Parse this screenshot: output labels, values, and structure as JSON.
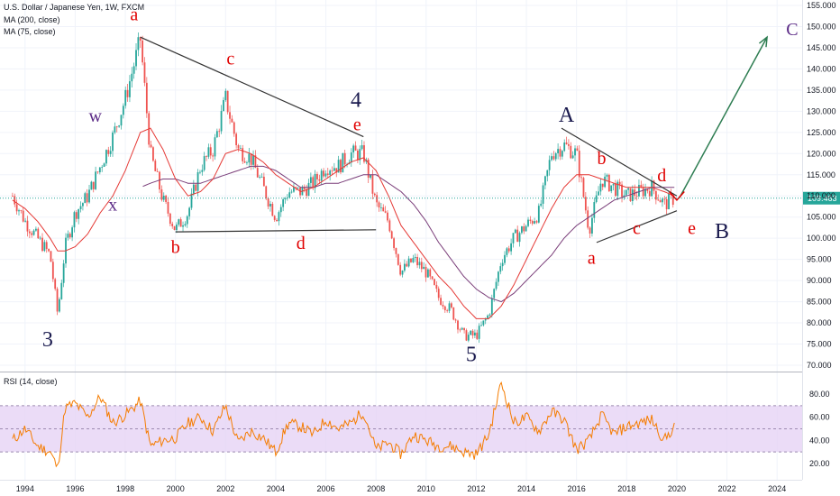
{
  "header": {
    "title": "U.S. Dollar / Japanese Yen, 1W, FXCM",
    "ma200_label": "MA (200, close)",
    "ma75_label": "MA (75, close)",
    "rsi_label": "RSI (14, close)"
  },
  "price_axis": {
    "last_price": "109.463",
    "ticks": [
      "155.000",
      "150.000",
      "145.000",
      "140.000",
      "135.000",
      "130.000",
      "125.000",
      "120.000",
      "115.000",
      "110.000",
      "105.000",
      "100.000",
      "95.000",
      "90.000",
      "85.000",
      "80.000",
      "75.000",
      "70.000"
    ]
  },
  "rsi_axis": {
    "ticks": [
      "80.00",
      "60.00",
      "40.00",
      "20.00"
    ]
  },
  "time_axis": {
    "ticks": [
      "1994",
      "1996",
      "1998",
      "2000",
      "2002",
      "2004",
      "2006",
      "2008",
      "2010",
      "2012",
      "2014",
      "2016",
      "2018",
      "2020",
      "2022",
      "2024"
    ]
  },
  "colors": {
    "up": "#26a69a",
    "down": "#ef5350",
    "ma75": "#e53935",
    "ma200": "#7b3f7a",
    "rsi": "#f57c00",
    "rsi_band": "#e6d3f5",
    "trendline": "#333333",
    "arrow": "#2e7d52",
    "last_price": "#26a69a",
    "wave_red": "#e00000",
    "wave_navy": "#1a1a4e"
  },
  "chart_data": [
    {
      "type": "candlestick",
      "title": "U.S. Dollar / Japanese Yen, 1W, FXCM",
      "ylim": [
        69,
        157
      ],
      "xlim": [
        1993.0,
        2025.0
      ],
      "x": [
        1993.5,
        1994.0,
        1994.5,
        1995.0,
        1995.3,
        1995.6,
        1996.0,
        1996.5,
        1997.0,
        1997.5,
        1998.0,
        1998.6,
        1999.0,
        1999.5,
        2000.0,
        2000.5,
        2001.0,
        2001.5,
        2002.0,
        2002.5,
        2003.0,
        2003.5,
        2004.0,
        2004.5,
        2005.0,
        2005.5,
        2006.0,
        2006.5,
        2007.0,
        2007.5,
        2008.0,
        2008.5,
        2009.0,
        2009.5,
        2010.0,
        2010.5,
        2011.0,
        2011.5,
        2012.0,
        2012.5,
        2013.0,
        2013.5,
        2014.0,
        2014.5,
        2015.0,
        2015.5,
        2016.0,
        2016.5,
        2017.0,
        2017.5,
        2018.0,
        2018.5,
        2019.0,
        2019.5,
        2019.9
      ],
      "close": [
        110,
        104,
        100,
        96,
        82,
        98,
        106,
        110,
        117,
        124,
        133,
        147,
        120,
        109,
        102,
        106,
        117,
        121,
        133,
        121,
        119,
        112,
        105,
        111,
        111,
        113,
        117,
        117,
        120,
        120,
        108,
        104,
        92,
        95,
        92,
        86,
        83,
        77,
        77,
        82,
        95,
        100,
        103,
        106,
        120,
        122,
        120,
        102,
        114,
        112,
        110,
        111,
        112,
        108,
        109.463
      ],
      "ma75_close": [
        109,
        107,
        104,
        100,
        97,
        97,
        98,
        101,
        106,
        110,
        116,
        125,
        126,
        121,
        114,
        110,
        111,
        114,
        120,
        121,
        120,
        118,
        115,
        113,
        111,
        112,
        114,
        116,
        118,
        119,
        116,
        110,
        103,
        99,
        95,
        91,
        88,
        84,
        81,
        81,
        84,
        89,
        95,
        101,
        107,
        112,
        115,
        115,
        114,
        113,
        112,
        112,
        112,
        111,
        110
      ],
      "ma200_close": [
        null,
        null,
        null,
        null,
        null,
        null,
        null,
        null,
        null,
        null,
        null,
        112,
        113,
        114,
        114,
        113,
        113,
        114,
        115,
        116,
        117,
        117,
        116,
        114,
        112,
        112,
        113,
        113,
        114,
        115,
        115,
        113,
        111,
        108,
        104,
        99,
        95,
        91,
        88,
        86,
        85,
        87,
        90,
        93,
        96,
        100,
        103,
        105,
        107,
        109,
        110,
        111,
        112,
        112,
        112
      ]
    },
    {
      "type": "line",
      "title": "RSI (14, close)",
      "ylim": [
        10,
        90
      ],
      "band": [
        30,
        70
      ],
      "x": [
        1993.5,
        1994.0,
        1994.5,
        1995.0,
        1995.3,
        1995.6,
        1996.0,
        1996.5,
        1997.0,
        1997.5,
        1998.0,
        1998.6,
        1999.0,
        1999.5,
        2000.0,
        2000.5,
        2001.0,
        2001.5,
        2002.0,
        2002.5,
        2003.0,
        2003.5,
        2004.0,
        2004.5,
        2005.0,
        2005.5,
        2006.0,
        2006.5,
        2007.0,
        2007.5,
        2008.0,
        2008.5,
        2009.0,
        2009.5,
        2010.0,
        2010.5,
        2011.0,
        2011.5,
        2012.0,
        2012.5,
        2013.0,
        2013.5,
        2014.0,
        2014.5,
        2015.0,
        2015.5,
        2016.0,
        2016.5,
        2017.0,
        2017.5,
        2018.0,
        2018.5,
        2019.0,
        2019.5,
        2019.9
      ],
      "values": [
        40,
        50,
        35,
        30,
        16,
        68,
        72,
        60,
        78,
        55,
        62,
        74,
        35,
        40,
        42,
        55,
        60,
        48,
        70,
        38,
        48,
        42,
        30,
        55,
        52,
        45,
        58,
        50,
        55,
        65,
        32,
        38,
        28,
        45,
        40,
        35,
        35,
        30,
        28,
        45,
        90,
        55,
        60,
        48,
        65,
        58,
        32,
        40,
        62,
        45,
        52,
        55,
        58,
        40,
        52
      ]
    }
  ],
  "wave_labels": [
    {
      "text": "a",
      "x": 1998.35,
      "price": 151.5,
      "style": "red"
    },
    {
      "text": "b",
      "x": 2000.0,
      "price": 96.5,
      "style": "red"
    },
    {
      "text": "c",
      "x": 2002.2,
      "price": 141.0,
      "style": "red"
    },
    {
      "text": "d",
      "x": 2005.0,
      "price": 97.5,
      "style": "red"
    },
    {
      "text": "e",
      "x": 2007.25,
      "price": 125.5,
      "style": "red"
    },
    {
      "text": "4",
      "x": 2007.2,
      "price": 131.0,
      "style": "navy"
    },
    {
      "text": "3",
      "x": 1994.9,
      "price": 74.5,
      "style": "navy"
    },
    {
      "text": "5",
      "x": 2011.8,
      "price": 71.0,
      "style": "navy"
    },
    {
      "text": "w",
      "x": 1996.8,
      "price": 127.5,
      "style": "purple"
    },
    {
      "text": "x",
      "x": 1997.5,
      "price": 106.5,
      "style": "purple"
    },
    {
      "text": "A",
      "x": 2015.6,
      "price": 127.5,
      "style": "navy"
    },
    {
      "text": "b",
      "x": 2017.0,
      "price": 117.5,
      "style": "red"
    },
    {
      "text": "a",
      "x": 2016.6,
      "price": 94.0,
      "style": "red"
    },
    {
      "text": "c",
      "x": 2018.4,
      "price": 101.0,
      "style": "red"
    },
    {
      "text": "d",
      "x": 2019.4,
      "price": 113.5,
      "style": "red"
    },
    {
      "text": "e",
      "x": 2020.6,
      "price": 101.0,
      "style": "red"
    },
    {
      "text": "B",
      "x": 2021.8,
      "price": 100.0,
      "style": "navy"
    },
    {
      "text": "C",
      "x": 2024.6,
      "price": 148.0,
      "style": "purple"
    }
  ],
  "trendlines": [
    {
      "x1": 1998.6,
      "p1": 147.5,
      "x2": 2007.5,
      "p2": 124.0
    },
    {
      "x1": 2000.0,
      "p1": 101.5,
      "x2": 2008.0,
      "p2": 102.0
    },
    {
      "x1": 2015.4,
      "p1": 126.0,
      "x2": 2020.0,
      "p2": 110.0
    },
    {
      "x1": 2016.8,
      "p1": 99.0,
      "x2": 2020.0,
      "p2": 106.5
    }
  ],
  "arrow": {
    "x1": 2020.1,
    "p1": 109.5,
    "x2": 2023.6,
    "p2": 147.5
  }
}
